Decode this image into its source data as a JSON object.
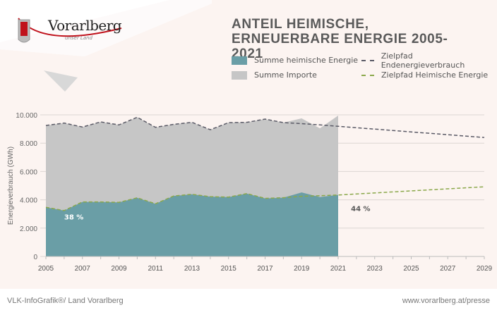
{
  "brand": {
    "name": "Vorarlberg",
    "tagline": "unser Land",
    "accent": "#c0121c"
  },
  "chart_data": {
    "type": "area",
    "title": "ANTEIL HEIMISCHE, ERNEUERBARE ENERGIE 2005-2021",
    "ylabel": "Energieverbrauch (GWh)",
    "xlabel": "",
    "xlim": [
      2005,
      2029
    ],
    "ylim": [
      0,
      10000
    ],
    "x_ticks": [
      "2005",
      "2007",
      "2009",
      "2011",
      "2013",
      "2015",
      "2017",
      "2019",
      "2021",
      "2023",
      "2025",
      "2027",
      "2029"
    ],
    "y_ticks": [
      "0",
      "2.000",
      "4.000",
      "6.000",
      "8.000",
      "10.000"
    ],
    "grid": true,
    "legend_placement": "top",
    "x": [
      2005,
      2006,
      2007,
      2008,
      2009,
      2010,
      2011,
      2012,
      2013,
      2014,
      2015,
      2016,
      2017,
      2018,
      2019,
      2020,
      2021
    ],
    "series": [
      {
        "name": "Summe heimische Energie",
        "color": "#6a9ea6",
        "values": [
          3470,
          3240,
          3850,
          3850,
          3820,
          4140,
          3720,
          4270,
          4390,
          4220,
          4190,
          4440,
          4100,
          4150,
          4520,
          4190,
          4350
        ]
      },
      {
        "name": "Summe Importe",
        "color": "#c6c6c6",
        "stacked_total": true,
        "values": [
          5780,
          6180,
          5290,
          5650,
          5470,
          5690,
          5400,
          5060,
          5080,
          4730,
          5260,
          5030,
          5600,
          5300,
          5230,
          4860,
          5600
        ]
      }
    ],
    "lines": [
      {
        "name": "Zielpfad Endenergieverbrauch",
        "color": "#5a5a66",
        "style": "dashed",
        "x": [
          2005,
          2006,
          2007,
          2008,
          2009,
          2010,
          2011,
          2012,
          2013,
          2014,
          2015,
          2016,
          2017,
          2018,
          2019,
          2020,
          2021,
          2029
        ],
        "values": [
          9250,
          9420,
          9140,
          9500,
          9290,
          9830,
          9120,
          9330,
          9470,
          8950,
          9450,
          9470,
          9700,
          9450,
          9380,
          9290,
          9190,
          8400
        ]
      },
      {
        "name": "Zielpfad Heimische Energie",
        "color": "#8aa84a",
        "style": "dashed",
        "x": [
          2005,
          2006,
          2007,
          2008,
          2009,
          2010,
          2011,
          2012,
          2013,
          2014,
          2015,
          2016,
          2017,
          2018,
          2019,
          2020,
          2021,
          2029
        ],
        "values": [
          3470,
          3240,
          3850,
          3850,
          3820,
          4140,
          3720,
          4270,
          4390,
          4220,
          4190,
          4440,
          4100,
          4150,
          4250,
          4290,
          4340,
          4920
        ]
      }
    ],
    "annotations": [
      {
        "text": "38 %",
        "x": 2006,
        "y": 2600
      },
      {
        "text": "44 %",
        "x": 2021.7,
        "y": 3200
      }
    ]
  },
  "footer": {
    "left": "VLK-InfoGrafik®/ Land Vorarlberg",
    "right": "www.vorarlberg.at/presse"
  }
}
